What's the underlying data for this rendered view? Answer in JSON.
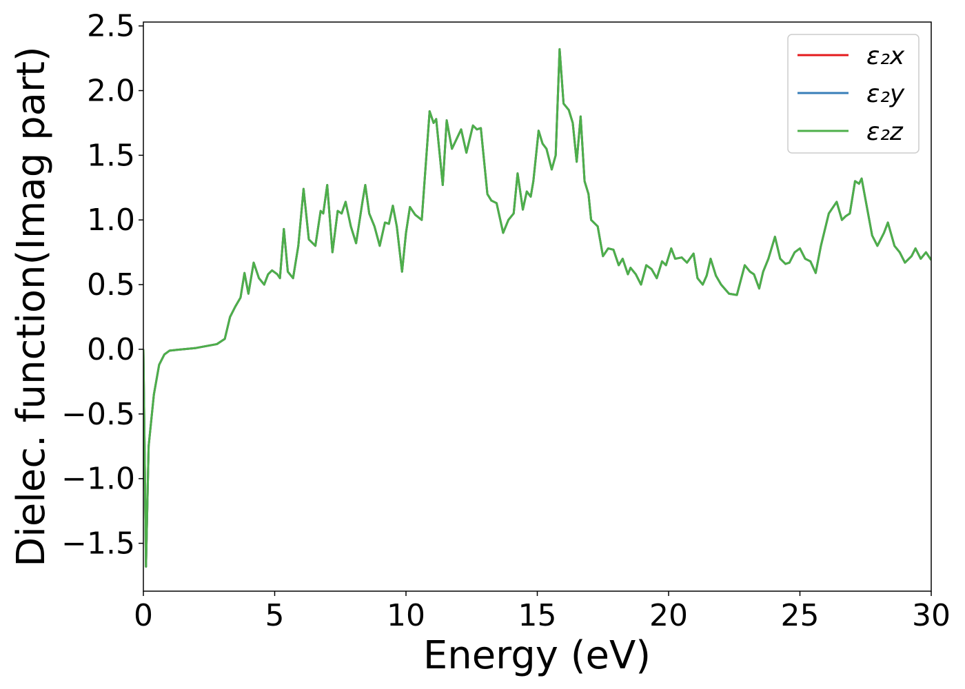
{
  "chart_data": {
    "type": "line",
    "xlabel": "Energy (eV)",
    "ylabel": "Dielec. function(Imag part)",
    "x": [
      0,
      0.1,
      0.2,
      0.4,
      0.6,
      0.8,
      1.0,
      2.0,
      2.8,
      3.1,
      3.3,
      3.5,
      3.7,
      3.85,
      4.0,
      4.2,
      4.4,
      4.6,
      4.75,
      4.9,
      5.1,
      5.2,
      5.35,
      5.5,
      5.7,
      5.9,
      6.1,
      6.3,
      6.55,
      6.75,
      6.85,
      7.0,
      7.2,
      7.4,
      7.55,
      7.7,
      7.9,
      8.1,
      8.35,
      8.45,
      8.6,
      8.8,
      9.0,
      9.2,
      9.35,
      9.5,
      9.65,
      9.85,
      10.0,
      10.15,
      10.35,
      10.6,
      10.9,
      11.05,
      11.15,
      11.4,
      11.55,
      11.75,
      12.1,
      12.3,
      12.55,
      12.7,
      12.85,
      13.1,
      13.25,
      13.45,
      13.7,
      13.9,
      14.1,
      14.25,
      14.45,
      14.6,
      14.75,
      14.85,
      15.05,
      15.2,
      15.35,
      15.55,
      15.7,
      15.85,
      16.0,
      16.2,
      16.35,
      16.5,
      16.65,
      16.8,
      16.95,
      17.05,
      17.3,
      17.5,
      17.7,
      17.9,
      18.1,
      18.25,
      18.45,
      18.55,
      18.75,
      18.95,
      19.15,
      19.35,
      19.55,
      19.75,
      19.9,
      20.1,
      20.25,
      20.5,
      20.7,
      20.95,
      21.1,
      21.3,
      21.45,
      21.6,
      21.8,
      22.0,
      22.3,
      22.6,
      22.9,
      23.1,
      23.25,
      23.45,
      23.6,
      23.8,
      24.05,
      24.25,
      24.45,
      24.6,
      24.8,
      25.0,
      25.2,
      25.4,
      25.6,
      25.8,
      26.1,
      26.4,
      26.6,
      26.75,
      26.9,
      27.1,
      27.25,
      27.35,
      27.55,
      27.75,
      27.95,
      28.2,
      28.35,
      28.6,
      28.8,
      29.0,
      29.25,
      29.4,
      29.6,
      29.8,
      30.0
    ],
    "series": [
      {
        "name": "ε₂x",
        "color": "#e41a1c",
        "values": [
          0,
          -1.68,
          -0.75,
          -0.35,
          -0.12,
          -0.04,
          -0.01,
          0.01,
          0.04,
          0.08,
          0.25,
          0.33,
          0.4,
          0.59,
          0.43,
          0.67,
          0.55,
          0.5,
          0.58,
          0.61,
          0.58,
          0.55,
          0.93,
          0.6,
          0.55,
          0.8,
          1.24,
          0.85,
          0.8,
          1.07,
          1.05,
          1.27,
          0.75,
          1.07,
          1.05,
          1.14,
          0.95,
          0.82,
          1.15,
          1.27,
          1.05,
          0.95,
          0.8,
          0.98,
          0.97,
          1.11,
          0.95,
          0.6,
          0.9,
          1.1,
          1.04,
          1.0,
          1.84,
          1.75,
          1.78,
          1.27,
          1.77,
          1.55,
          1.7,
          1.52,
          1.73,
          1.7,
          1.71,
          1.2,
          1.15,
          1.13,
          0.9,
          1.0,
          1.05,
          1.36,
          1.08,
          1.22,
          1.18,
          1.3,
          1.69,
          1.59,
          1.55,
          1.39,
          1.5,
          2.32,
          1.9,
          1.85,
          1.75,
          1.45,
          1.8,
          1.3,
          1.2,
          1.0,
          0.95,
          0.72,
          0.78,
          0.77,
          0.65,
          0.7,
          0.58,
          0.63,
          0.58,
          0.5,
          0.65,
          0.62,
          0.55,
          0.68,
          0.65,
          0.78,
          0.7,
          0.71,
          0.67,
          0.74,
          0.55,
          0.5,
          0.57,
          0.7,
          0.57,
          0.5,
          0.43,
          0.42,
          0.65,
          0.6,
          0.58,
          0.47,
          0.6,
          0.7,
          0.87,
          0.7,
          0.66,
          0.67,
          0.75,
          0.78,
          0.7,
          0.68,
          0.59,
          0.8,
          1.05,
          1.14,
          1.0,
          1.03,
          1.05,
          1.3,
          1.28,
          1.32,
          1.1,
          0.88,
          0.8,
          0.9,
          0.98,
          0.8,
          0.75,
          0.67,
          0.72,
          0.78,
          0.7,
          0.75,
          0.69
        ]
      },
      {
        "name": "ε₂y",
        "color": "#377eb8",
        "values": [
          0,
          -1.68,
          -0.75,
          -0.35,
          -0.12,
          -0.04,
          -0.01,
          0.01,
          0.04,
          0.08,
          0.25,
          0.33,
          0.4,
          0.59,
          0.43,
          0.67,
          0.55,
          0.5,
          0.58,
          0.61,
          0.58,
          0.55,
          0.93,
          0.6,
          0.55,
          0.8,
          1.24,
          0.85,
          0.8,
          1.07,
          1.05,
          1.27,
          0.75,
          1.07,
          1.05,
          1.14,
          0.95,
          0.82,
          1.15,
          1.27,
          1.05,
          0.95,
          0.8,
          0.98,
          0.97,
          1.11,
          0.95,
          0.6,
          0.9,
          1.1,
          1.04,
          1.0,
          1.84,
          1.75,
          1.78,
          1.27,
          1.77,
          1.55,
          1.7,
          1.52,
          1.73,
          1.7,
          1.71,
          1.2,
          1.15,
          1.13,
          0.9,
          1.0,
          1.05,
          1.36,
          1.08,
          1.22,
          1.18,
          1.3,
          1.69,
          1.59,
          1.55,
          1.39,
          1.5,
          2.32,
          1.9,
          1.85,
          1.75,
          1.45,
          1.8,
          1.3,
          1.2,
          1.0,
          0.95,
          0.72,
          0.78,
          0.77,
          0.65,
          0.7,
          0.58,
          0.63,
          0.58,
          0.5,
          0.65,
          0.62,
          0.55,
          0.68,
          0.65,
          0.78,
          0.7,
          0.71,
          0.67,
          0.74,
          0.55,
          0.5,
          0.57,
          0.7,
          0.57,
          0.5,
          0.43,
          0.42,
          0.65,
          0.6,
          0.58,
          0.47,
          0.6,
          0.7,
          0.87,
          0.7,
          0.66,
          0.67,
          0.75,
          0.78,
          0.7,
          0.68,
          0.59,
          0.8,
          1.05,
          1.14,
          1.0,
          1.03,
          1.05,
          1.3,
          1.28,
          1.32,
          1.1,
          0.88,
          0.8,
          0.9,
          0.98,
          0.8,
          0.75,
          0.67,
          0.72,
          0.78,
          0.7,
          0.75,
          0.69
        ]
      },
      {
        "name": "ε₂z",
        "color": "#4daf4a",
        "values": [
          0,
          -1.68,
          -0.75,
          -0.35,
          -0.12,
          -0.04,
          -0.01,
          0.01,
          0.04,
          0.08,
          0.25,
          0.33,
          0.4,
          0.59,
          0.43,
          0.67,
          0.55,
          0.5,
          0.58,
          0.61,
          0.58,
          0.55,
          0.93,
          0.6,
          0.55,
          0.8,
          1.24,
          0.85,
          0.8,
          1.07,
          1.05,
          1.27,
          0.75,
          1.07,
          1.05,
          1.14,
          0.95,
          0.82,
          1.15,
          1.27,
          1.05,
          0.95,
          0.8,
          0.98,
          0.97,
          1.11,
          0.95,
          0.6,
          0.9,
          1.1,
          1.04,
          1.0,
          1.84,
          1.75,
          1.78,
          1.27,
          1.77,
          1.55,
          1.7,
          1.52,
          1.73,
          1.7,
          1.71,
          1.2,
          1.15,
          1.13,
          0.9,
          1.0,
          1.05,
          1.36,
          1.08,
          1.22,
          1.18,
          1.3,
          1.69,
          1.59,
          1.55,
          1.39,
          1.5,
          2.32,
          1.9,
          1.85,
          1.75,
          1.45,
          1.8,
          1.3,
          1.2,
          1.0,
          0.95,
          0.72,
          0.78,
          0.77,
          0.65,
          0.7,
          0.58,
          0.63,
          0.58,
          0.5,
          0.65,
          0.62,
          0.55,
          0.68,
          0.65,
          0.78,
          0.7,
          0.71,
          0.67,
          0.74,
          0.55,
          0.5,
          0.57,
          0.7,
          0.57,
          0.5,
          0.43,
          0.42,
          0.65,
          0.6,
          0.58,
          0.47,
          0.6,
          0.7,
          0.87,
          0.7,
          0.66,
          0.67,
          0.75,
          0.78,
          0.7,
          0.68,
          0.59,
          0.8,
          1.05,
          1.14,
          1.0,
          1.03,
          1.05,
          1.3,
          1.28,
          1.32,
          1.1,
          0.88,
          0.8,
          0.9,
          0.98,
          0.8,
          0.75,
          0.67,
          0.72,
          0.78,
          0.7,
          0.75,
          0.69
        ]
      }
    ],
    "xlim": [
      0,
      30
    ],
    "xticks": [
      0,
      5,
      10,
      15,
      20,
      25,
      30
    ],
    "ylim": [
      -1.87,
      2.53
    ],
    "yticks": [
      {
        "value": -1.5,
        "label": "−1.5"
      },
      {
        "value": -1.0,
        "label": "−1.0"
      },
      {
        "value": -0.5,
        "label": "−0.5"
      },
      {
        "value": 0.0,
        "label": "0.0"
      },
      0.5,
      {
        "value": 1.0,
        "label": "1.0"
      },
      1.5,
      {
        "value": 2.0,
        "label": "2.0"
      },
      2.5
    ],
    "grid": false,
    "legend": "upper right"
  }
}
